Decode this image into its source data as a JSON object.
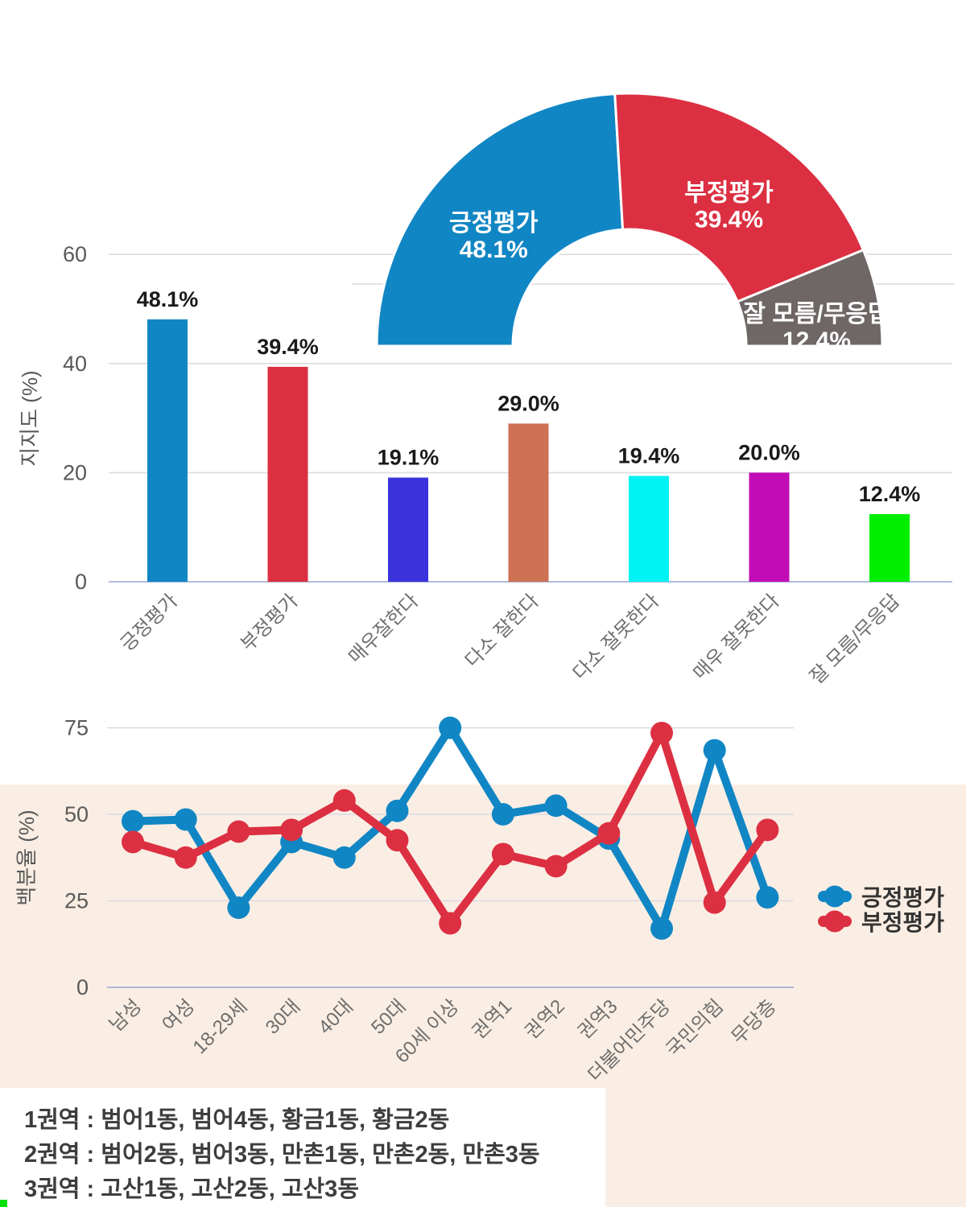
{
  "chart_data": [
    {
      "id": "approval-half-donut",
      "type": "pie",
      "half": true,
      "labels": [
        "긍정평가",
        "부정평가",
        "잘 모름/무응답"
      ],
      "values": [
        48.1,
        39.4,
        12.4
      ],
      "data_labels": [
        "48.1%",
        "39.4%",
        "12.4%"
      ],
      "colors": [
        "#1186C4",
        "#DC3042",
        "#6F6666"
      ]
    },
    {
      "id": "approval-bars",
      "type": "bar",
      "title": "",
      "ylabel": "지지도 (%)",
      "yticks": [
        0,
        20,
        40,
        60
      ],
      "ylim": [
        0,
        66
      ],
      "grid": true,
      "categories": [
        "긍정평가",
        "부정평가",
        "매우잘한다",
        "다소 잘한다",
        "다소 잘못한다",
        "매우 잘못한다",
        "잘 모름/무응답"
      ],
      "values": [
        48.1,
        39.4,
        19.1,
        29.0,
        19.4,
        20.0,
        12.4
      ],
      "data_labels": [
        "48.1%",
        "39.4%",
        "19.1%",
        "29.0%",
        "19.4%",
        "20.0%",
        "12.4%"
      ],
      "colors": [
        "#1186C4",
        "#DC3042",
        "#3A33DC",
        "#CD7054",
        "#00F2F2",
        "#C20CB7",
        "#00EE00"
      ]
    },
    {
      "id": "demographic-lines",
      "type": "line",
      "ylabel": "백분율 (%)",
      "yticks": [
        0,
        25,
        50,
        75
      ],
      "ylim": [
        0,
        80
      ],
      "grid": true,
      "legend_position": "right",
      "categories": [
        "남성",
        "여성",
        "18-29세",
        "30대",
        "40대",
        "50대",
        "60세 이상",
        "권역1",
        "권역2",
        "권역3",
        "더불어민주당",
        "국민의힘",
        "무당층"
      ],
      "series": [
        {
          "name": "긍정평가",
          "color": "#1186C4",
          "values": [
            48,
            48.5,
            23,
            42,
            37.5,
            51,
            75,
            50,
            52.5,
            43,
            17,
            68.5,
            26
          ]
        },
        {
          "name": "부정평가",
          "color": "#DC3042",
          "values": [
            42,
            37.5,
            45,
            45.5,
            54,
            42.5,
            18.5,
            38.5,
            35,
            44.5,
            73.5,
            24.5,
            45.5
          ]
        }
      ]
    }
  ],
  "notes": {
    "line1": "1권역 : 범어1동, 범어4동, 황금1동, 황금2동",
    "line2": "2권역 : 범어2동, 범어3동, 만촌1동, 만촌2동, 만촌3동",
    "line3": "3권역 : 고산1동, 고산2동, 고산3동"
  }
}
